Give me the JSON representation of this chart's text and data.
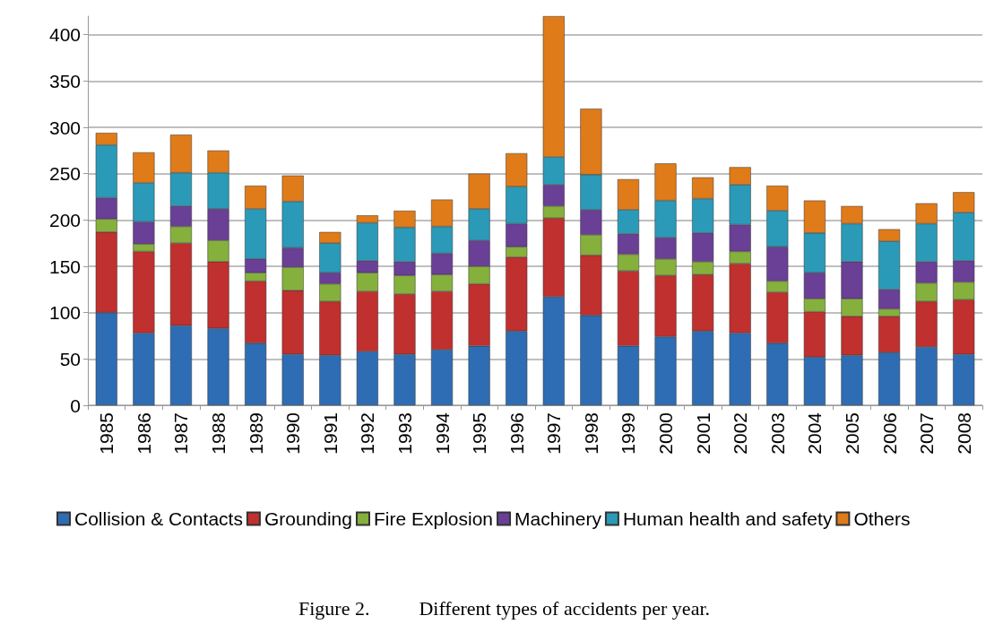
{
  "chart_data": {
    "type": "bar",
    "stacked": true,
    "title": "Figure 2.          Different types of accidents per year.",
    "categories": [
      "1985",
      "1986",
      "1987",
      "1988",
      "1989",
      "1990",
      "1991",
      "1992",
      "1993",
      "1994",
      "1995",
      "1996",
      "1997",
      "1998",
      "1999",
      "2000",
      "2001",
      "2002",
      "2003",
      "2004",
      "2005",
      "2006",
      "2007",
      "2008"
    ],
    "series": [
      {
        "name": "Collision & Contacts",
        "color": "#2e6db4",
        "values": [
          100,
          78,
          86,
          83,
          67,
          55,
          54,
          58,
          55,
          60,
          64,
          80,
          117,
          97,
          64,
          74,
          80,
          78,
          67,
          52,
          54,
          57,
          63,
          55
        ]
      },
      {
        "name": "Grounding",
        "color": "#c0302e",
        "values": [
          87,
          88,
          89,
          72,
          67,
          69,
          58,
          65,
          65,
          63,
          67,
          80,
          85,
          65,
          81,
          66,
          61,
          75,
          55,
          49,
          42,
          39,
          49,
          59
        ]
      },
      {
        "name": "Fire Explosion",
        "color": "#86b03c",
        "values": [
          14,
          8,
          18,
          23,
          9,
          25,
          19,
          20,
          20,
          18,
          19,
          11,
          13,
          22,
          18,
          18,
          14,
          13,
          12,
          14,
          19,
          8,
          20,
          19
        ]
      },
      {
        "name": "Machinery",
        "color": "#6a3f96",
        "values": [
          23,
          24,
          22,
          34,
          15,
          21,
          12,
          13,
          15,
          23,
          28,
          25,
          23,
          27,
          22,
          23,
          31,
          29,
          37,
          28,
          40,
          21,
          23,
          23
        ]
      },
      {
        "name": "Human health and safety",
        "color": "#2a9ab8",
        "values": [
          57,
          42,
          36,
          39,
          54,
          50,
          32,
          41,
          37,
          29,
          34,
          40,
          30,
          38,
          26,
          40,
          37,
          43,
          39,
          43,
          41,
          52,
          41,
          52
        ]
      },
      {
        "name": "Others",
        "color": "#e07b1a",
        "values": [
          13,
          33,
          41,
          24,
          25,
          28,
          12,
          8,
          18,
          29,
          38,
          36,
          152,
          71,
          33,
          40,
          23,
          19,
          27,
          35,
          19,
          13,
          22,
          22
        ]
      }
    ],
    "ylim": [
      0,
      420
    ],
    "yticks": [
      0,
      50,
      100,
      150,
      200,
      250,
      300,
      350,
      400
    ],
    "grid": "y",
    "legend": "bottom"
  }
}
